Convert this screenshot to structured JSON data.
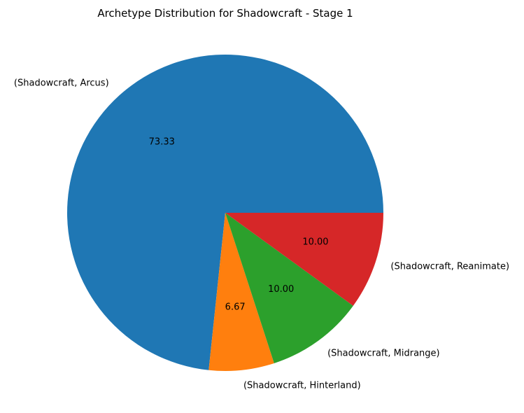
{
  "chart_data": {
    "type": "pie",
    "title": "Archetype Distribution for Shadowcraft - Stage 1",
    "labels": [
      "(Shadowcraft, Arcus)",
      "(Shadowcraft, Hinterland)",
      "(Shadowcraft, Midrange)",
      "(Shadowcraft, Reanimate)"
    ],
    "values": [
      73.33,
      6.67,
      10.0,
      10.0
    ],
    "value_labels": [
      "73.33",
      "6.67",
      "10.00",
      "10.00"
    ],
    "colors": [
      "#1f77b4",
      "#ff7f0e",
      "#2ca02c",
      "#d62728"
    ],
    "start_angle": "3 o'clock, counter-clockwise"
  }
}
